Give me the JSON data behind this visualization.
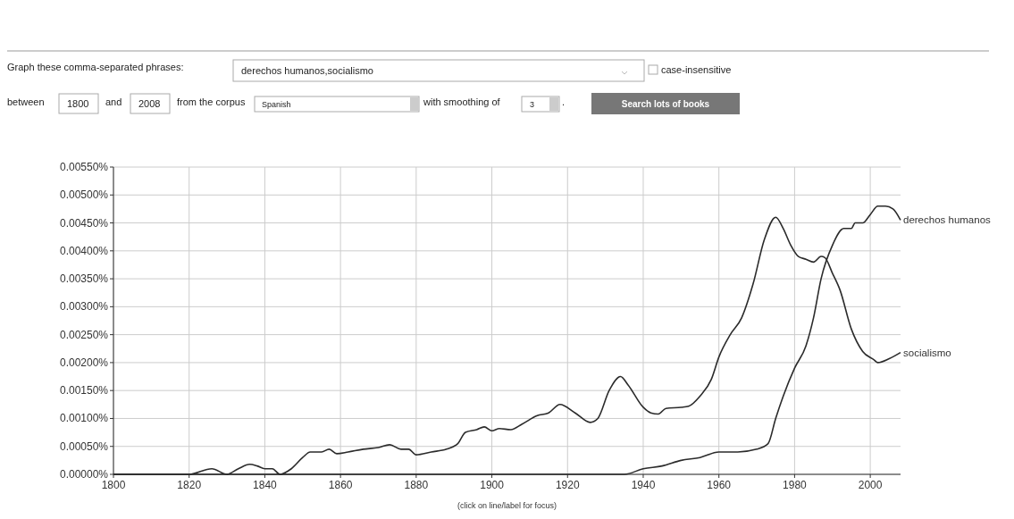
{
  "chart_data": {
    "type": "line",
    "annotations": [
      "Graph these comma-separated phrases:",
      "derechos humanos,socialismo",
      "case-insensitive",
      "between",
      "1800",
      "and",
      "2008",
      "from the corpus",
      "Spanish",
      "with smoothing of",
      "3",
      ".",
      "Search lots of books",
      "(click on line/label for focus)"
    ],
    "series": [
      {
        "name": "derechos humanos",
        "color": "#2b2b2b",
        "x": [
          1800,
          1850,
          1900,
          1935,
          1940,
          1945,
          1950,
          1955,
          1960,
          1965,
          1970,
          1973,
          1975,
          1977,
          1980,
          1983,
          1985,
          1987,
          1990,
          1993,
          1995,
          1996,
          1998,
          2000,
          2002,
          2004,
          2006,
          2008
        ],
        "values": [
          0,
          0,
          0,
          0,
          0.0001,
          0.00015,
          0.00025,
          0.0003,
          0.0004,
          0.0004,
          0.00045,
          0.00055,
          0.001,
          0.0014,
          0.0019,
          0.0023,
          0.0028,
          0.0035,
          0.0041,
          0.0044,
          0.0044,
          0.0045,
          0.0045,
          0.00465,
          0.0048,
          0.0048,
          0.00475,
          0.00455
        ]
      },
      {
        "name": "socialismo",
        "color": "#2b2b2b",
        "x": [
          1800,
          1820,
          1826,
          1830,
          1833,
          1836,
          1838,
          1840,
          1842,
          1844,
          1847,
          1850,
          1852,
          1855,
          1857,
          1859,
          1862,
          1866,
          1870,
          1873,
          1876,
          1878,
          1880,
          1884,
          1888,
          1891,
          1893,
          1896,
          1898,
          1900,
          1902,
          1905,
          1908,
          1912,
          1915,
          1918,
          1922,
          1926,
          1928,
          1931,
          1934,
          1936,
          1940,
          1942,
          1944,
          1946,
          1950,
          1952,
          1955,
          1958,
          1960,
          1963,
          1966,
          1969,
          1972,
          1975,
          1977,
          1979,
          1981,
          1983,
          1985,
          1987,
          1988,
          1990,
          1992,
          1995,
          1998,
          2001,
          2002,
          2005,
          2008
        ],
        "values": [
          0,
          0,
          0.0001,
          0,
          0.0001,
          0.00018,
          0.00015,
          0.0001,
          0.0001,
          0,
          0.0001,
          0.0003,
          0.0004,
          0.0004,
          0.00045,
          0.00037,
          0.0004,
          0.00045,
          0.00048,
          0.00053,
          0.00045,
          0.00045,
          0.00035,
          0.0004,
          0.00045,
          0.00055,
          0.00075,
          0.0008,
          0.00085,
          0.00078,
          0.00082,
          0.0008,
          0.0009,
          0.00105,
          0.0011,
          0.00125,
          0.0011,
          0.00093,
          0.001,
          0.0015,
          0.00175,
          0.0016,
          0.0012,
          0.0011,
          0.00108,
          0.00118,
          0.0012,
          0.00122,
          0.0014,
          0.0017,
          0.0021,
          0.0025,
          0.0028,
          0.0034,
          0.0042,
          0.0046,
          0.0044,
          0.0041,
          0.0039,
          0.00385,
          0.0038,
          0.0039,
          0.00388,
          0.0036,
          0.0033,
          0.0026,
          0.0022,
          0.00205,
          0.002,
          0.00207,
          0.00218
        ]
      }
    ],
    "xlim": [
      1800,
      2008
    ],
    "xticks": [
      1800,
      1820,
      1840,
      1860,
      1880,
      1900,
      1920,
      1940,
      1960,
      1980,
      2000
    ],
    "ylim": [
      0,
      0.0055
    ],
    "yticks": [
      {
        "value": 0,
        "label": "0.00000%"
      },
      {
        "value": 0.0005,
        "label": "0.00050%"
      },
      {
        "value": 0.001,
        "label": "0.00100%"
      },
      {
        "value": 0.0015,
        "label": "0.00150%"
      },
      {
        "value": 0.002,
        "label": "0.00200%"
      },
      {
        "value": 0.0025,
        "label": "0.00250%"
      },
      {
        "value": 0.003,
        "label": "0.00300%"
      },
      {
        "value": 0.0035,
        "label": "0.00350%"
      },
      {
        "value": 0.004,
        "label": "0.00400%"
      },
      {
        "value": 0.0045,
        "label": "0.00450%"
      },
      {
        "value": 0.005,
        "label": "0.00500%"
      },
      {
        "value": 0.0055,
        "label": "0.00550%"
      }
    ],
    "grid": true
  }
}
